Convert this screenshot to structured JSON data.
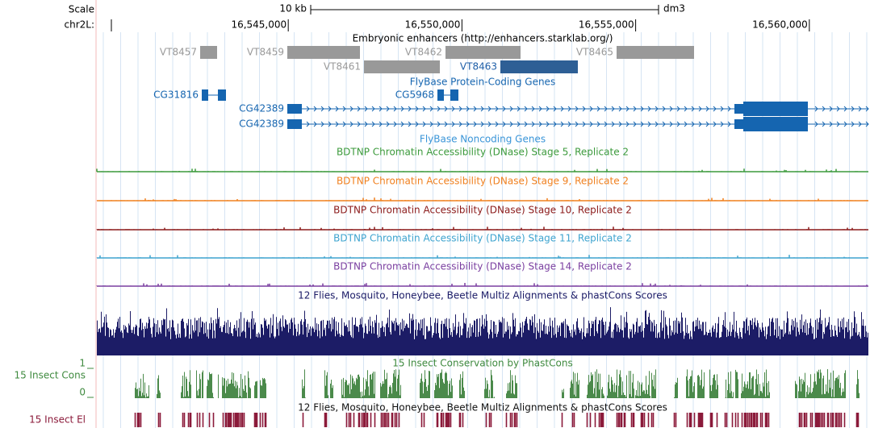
{
  "scale": {
    "label": "Scale",
    "bar": "10 kb",
    "assembly": "dm3"
  },
  "ruler": {
    "chrom": "chr2L:",
    "range": [
      16539490,
      16561700
    ],
    "ticks": [
      {
        "value": 16545000,
        "label": "16,545,000"
      },
      {
        "value": 16550000,
        "label": "16,550,000"
      },
      {
        "value": 16555000,
        "label": "16,555,000"
      },
      {
        "value": 16560000,
        "label": "16,560,000"
      }
    ]
  },
  "enhancers": {
    "title": "Embryonic enhancers (http://enhancers.starklab.org/)",
    "items": [
      "VT8457",
      "VT8459",
      "VT8462",
      "VT8465",
      "VT8461",
      "VT8463"
    ]
  },
  "protein_genes": {
    "title": "FlyBase Protein-Coding Genes",
    "genes": [
      "CG31816",
      "CG5968",
      "CG42389",
      "CG42389"
    ]
  },
  "noncoding_genes": {
    "title": "FlyBase Noncoding Genes"
  },
  "dnase": [
    "BDTNP Chromatin Accessibility (DNase) Stage 5, Replicate 2",
    "BDTNP Chromatin Accessibility (DNase) Stage 9, Replicate 2",
    "BDTNP Chromatin Accessibility (DNase) Stage 10, Replicate 2",
    "BDTNP Chromatin Accessibility (DNase) Stage 11, Replicate 2",
    "BDTNP Chromatin Accessibility (DNase) Stage 14, Replicate 2"
  ],
  "multiz": {
    "title": "12 Flies, Mosquito, Honeybee, Beetle Multiz Alignments & phastCons Scores"
  },
  "phastcons": {
    "title": "15 Insect Conservation by PhastCons",
    "label": "15 Insect Cons",
    "max": 1,
    "min": 0
  },
  "elements": {
    "title": "12 Flies, Mosquito, Honeybee, Beetle Multiz Alignments & phastCons Scores",
    "label": "15 Insect El"
  }
}
